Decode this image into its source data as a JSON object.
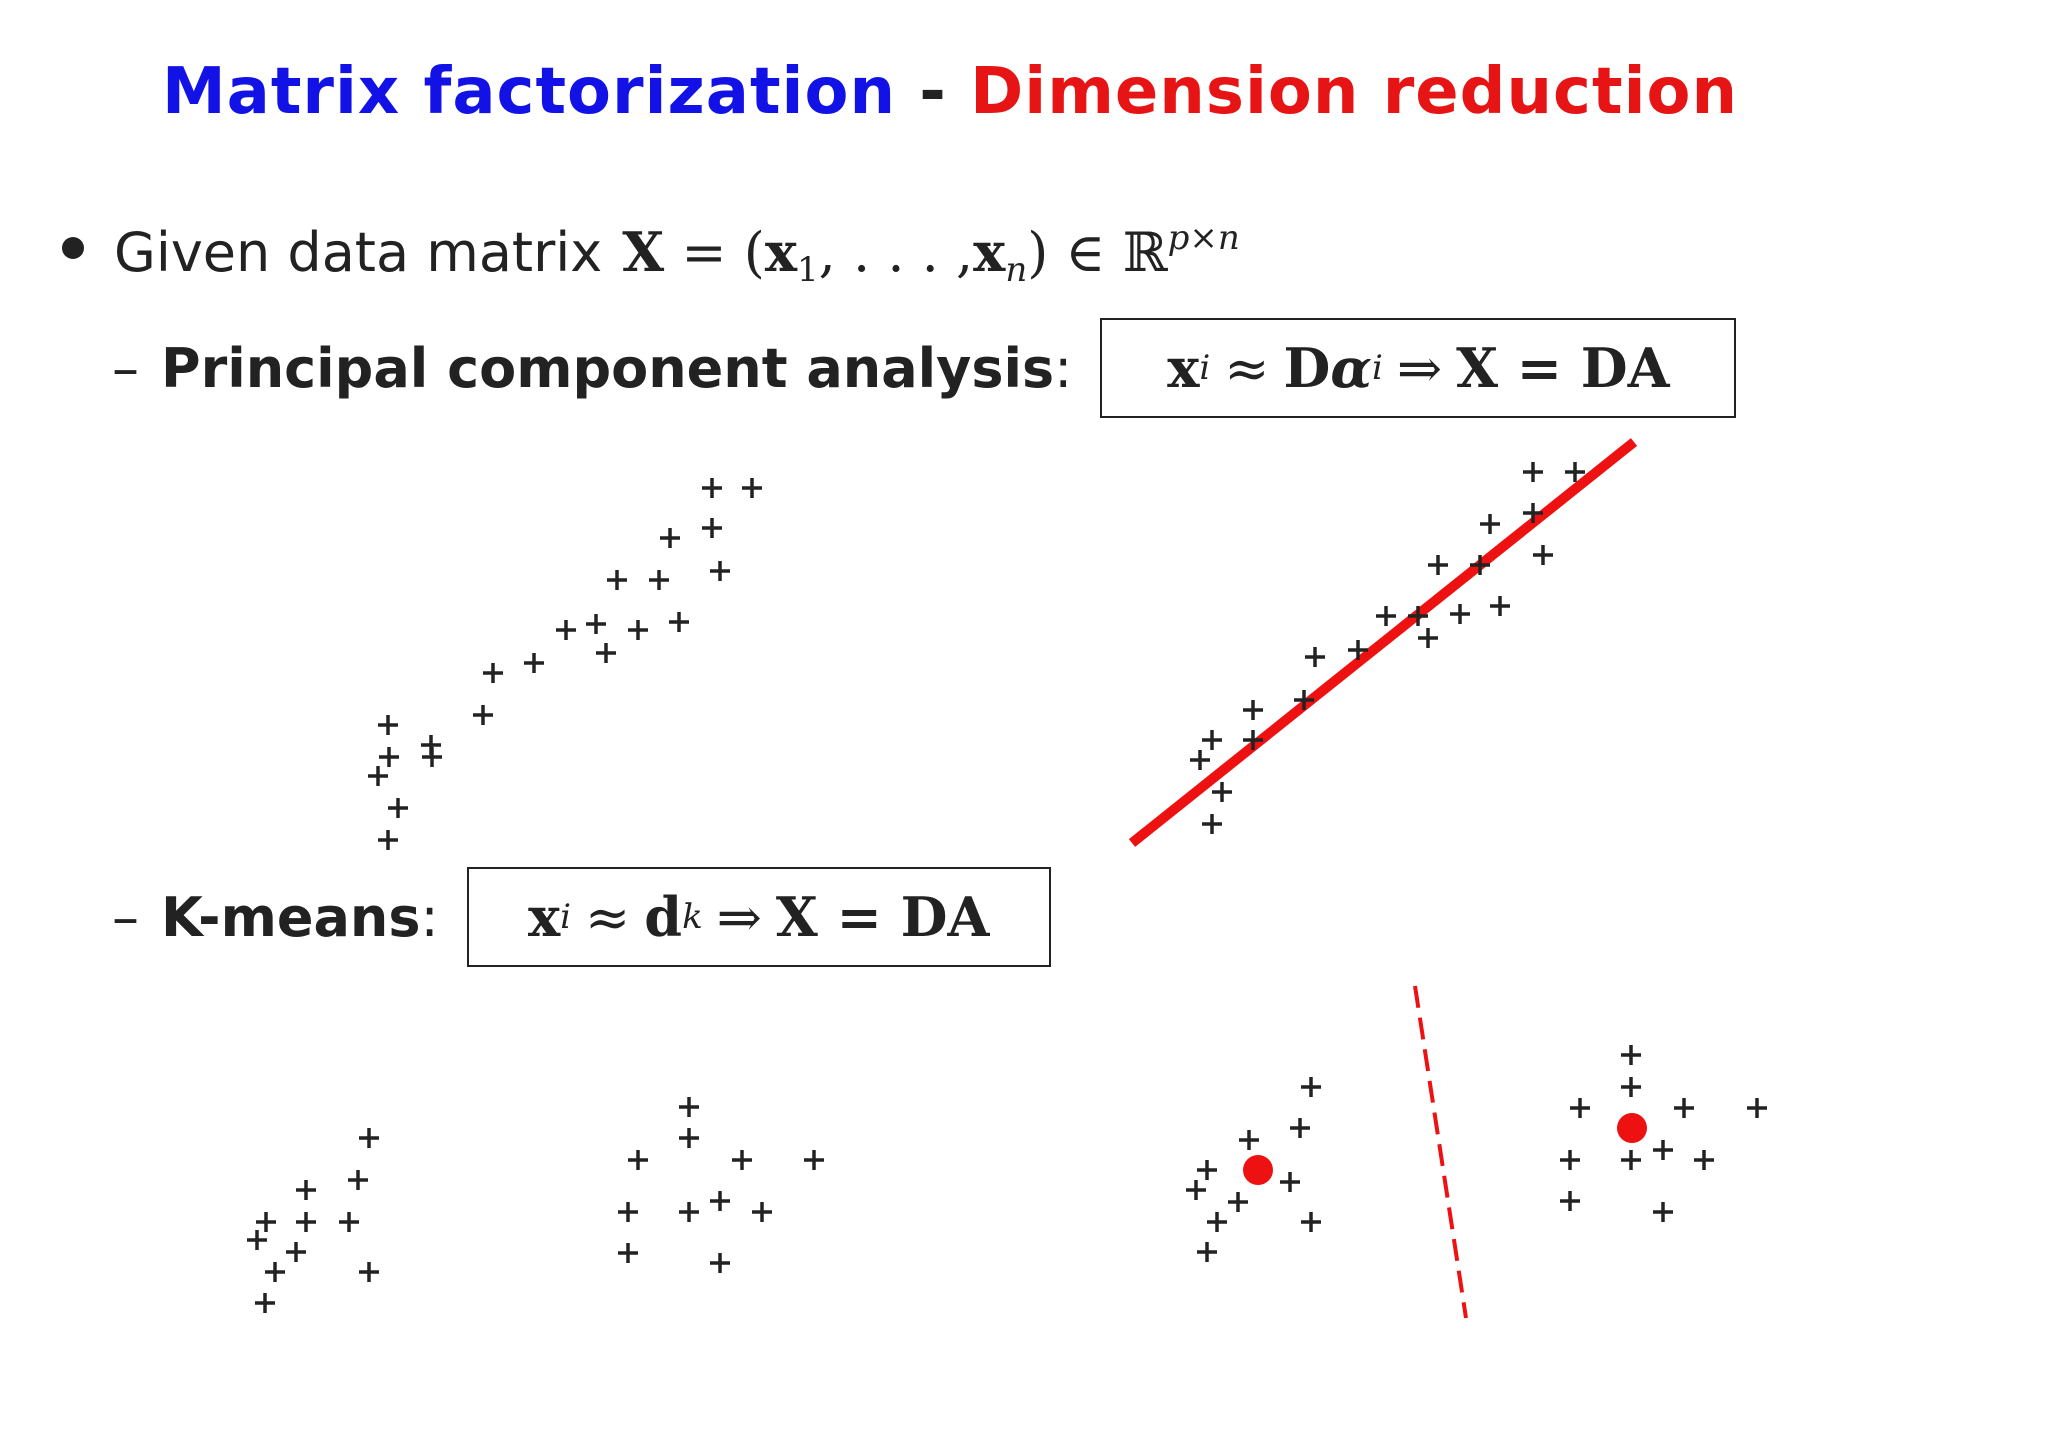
{
  "title": {
    "part1": "Matrix factorization",
    "separator": "-",
    "part2": "Dimension reduction",
    "color1": "#1212e6",
    "color2": "#e61414"
  },
  "bullet": {
    "text": "Given data matrix",
    "equation": {
      "X": "X",
      "eq": "=",
      "open": "(",
      "x1": "x",
      "x1_sub": "1",
      "dots": ", . . . ,",
      "xn": "x",
      "xn_sub": "n",
      "close": ")",
      "in": "∈",
      "R": "ℝ",
      "R_sup": "p×n"
    }
  },
  "pca": {
    "dash": "–",
    "label": "Principal component analysis",
    "colon": ":",
    "formula": {
      "x": "x",
      "x_sub": "i",
      "approx": "≈",
      "D": "D",
      "alpha": "α",
      "alpha_sub": "i",
      "implies": "⇒",
      "rhs": "X = DA"
    }
  },
  "kmeans": {
    "dash": "–",
    "label": "K-means",
    "colon": ":",
    "formula": {
      "x": "x",
      "x_sub": "i",
      "approx": "≈",
      "d": "d",
      "d_sub": "k",
      "implies": "⇒",
      "rhs": "X = DA"
    }
  },
  "colors": {
    "accent": "#ee1111",
    "ink": "#222222"
  }
}
